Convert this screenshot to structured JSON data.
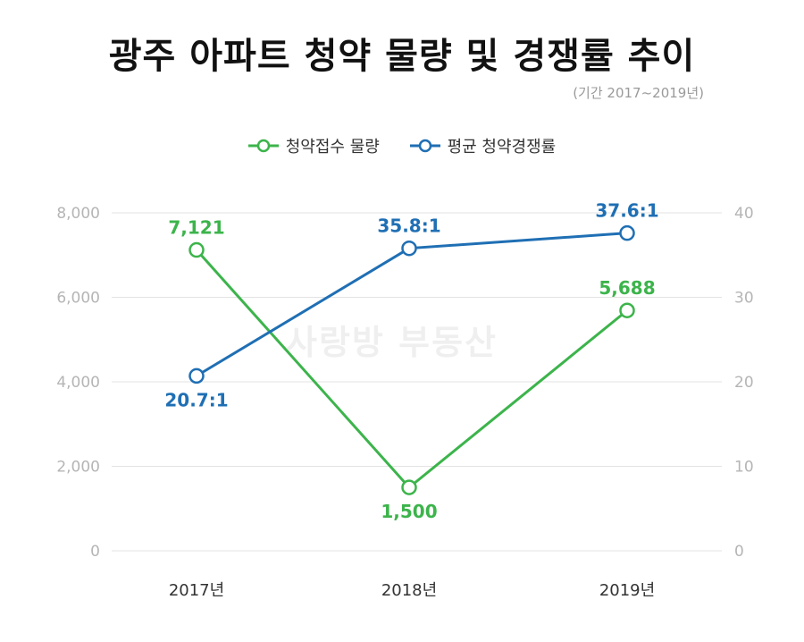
{
  "title": "광주 아파트 청약 물량 및 경쟁률 추이",
  "subtitle": "(기간 2017~2019년)",
  "watermark": "사랑방 부동산",
  "colors": {
    "green": "#3cb44b",
    "blue": "#1f6fb4",
    "grid": "#e3e3e3",
    "tick": "#b5b5b5",
    "xtick": "#333333"
  },
  "chart_data": {
    "type": "line",
    "title": "광주 아파트 청약 물량 및 경쟁률 추이",
    "categories": [
      "2017년",
      "2018년",
      "2019년"
    ],
    "y_left": {
      "ticks": [
        "0",
        "2,000",
        "4,000",
        "6,000",
        "8,000"
      ],
      "range": [
        0,
        8000
      ]
    },
    "y_right": {
      "ticks": [
        "0",
        "10",
        "20",
        "30",
        "40"
      ],
      "range": [
        0,
        40
      ]
    },
    "grid": true,
    "legend_position": "top-center",
    "series": [
      {
        "name": "청약접수 물량",
        "axis": "left",
        "color": "#3cb44b",
        "values": [
          7121,
          1500,
          5688
        ],
        "labels": [
          "7,121",
          "1,500",
          "5,688"
        ]
      },
      {
        "name": "평균 청약경쟁률",
        "axis": "right",
        "color": "#1f6fb4",
        "values": [
          20.7,
          35.8,
          37.6
        ],
        "labels": [
          "20.7:1",
          "35.8:1",
          "37.6:1"
        ]
      }
    ]
  }
}
